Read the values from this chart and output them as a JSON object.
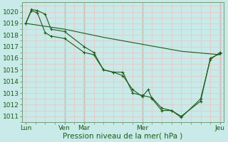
{
  "background_color": "#c8eae8",
  "grid_major_color": "#e8c8c8",
  "grid_minor_color": "#e8c8c8",
  "vline_color": "#557755",
  "line_color": "#1a5c1a",
  "xlabel": "Pression niveau de la mer( hPa )",
  "ylim": [
    1010.5,
    1020.8
  ],
  "yticks": [
    1011,
    1012,
    1013,
    1014,
    1015,
    1016,
    1017,
    1018,
    1019,
    1020
  ],
  "xtick_labels": [
    "Lun",
    "",
    "Ven",
    "Mar",
    "",
    "",
    "Mer",
    "",
    "",
    "",
    "Jeu"
  ],
  "xtick_positions": [
    0,
    1,
    2,
    3,
    4,
    5,
    6,
    7,
    8,
    9,
    10
  ],
  "day_labels": [
    "Lun",
    "Ven",
    "Mar",
    "Mer",
    "Jeu"
  ],
  "day_positions": [
    0.0,
    2.0,
    3.0,
    6.0,
    10.0
  ],
  "vlines_x": [
    2,
    3,
    6,
    10
  ],
  "series1_x": [
    0.0,
    0.3,
    0.6,
    1.0,
    1.3,
    2.0,
    3.0,
    3.5,
    4.0,
    4.5,
    5.0,
    5.5,
    6.0,
    6.5,
    7.0,
    7.5,
    8.0,
    9.0,
    9.5,
    10.0
  ],
  "series1_y": [
    1019.0,
    1020.2,
    1020.1,
    1019.8,
    1018.5,
    1018.3,
    1017.0,
    1016.5,
    1015.0,
    1014.8,
    1014.8,
    1013.0,
    1012.8,
    1012.6,
    1011.7,
    1011.5,
    1011.0,
    1012.3,
    1016.0,
    1016.4
  ],
  "series2_x": [
    0.0,
    0.3,
    0.6,
    1.0,
    1.3,
    2.0,
    3.0,
    3.5,
    4.0,
    4.5,
    5.0,
    5.5,
    6.0,
    6.3,
    6.5,
    7.0,
    7.5,
    8.0,
    9.0,
    9.5,
    10.0
  ],
  "series2_y": [
    1019.0,
    1020.1,
    1019.9,
    1018.2,
    1017.9,
    1017.7,
    1016.5,
    1016.3,
    1015.0,
    1014.8,
    1014.5,
    1013.3,
    1012.7,
    1013.3,
    1012.5,
    1011.5,
    1011.5,
    1010.9,
    1012.5,
    1015.9,
    1016.5
  ],
  "series3_x": [
    0.0,
    2.0,
    4.0,
    6.0,
    8.0,
    10.0
  ],
  "series3_y": [
    1019.0,
    1018.5,
    1017.8,
    1017.2,
    1016.6,
    1016.3
  ],
  "tick_fontsize": 6.5,
  "xlabel_fontsize": 7.5
}
